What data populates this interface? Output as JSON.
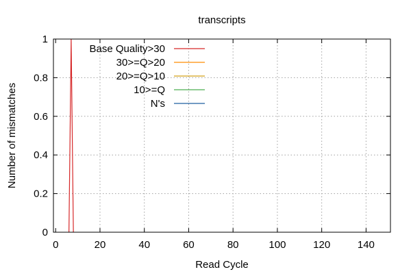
{
  "chart_data": {
    "type": "line",
    "title": "transcripts",
    "xlabel": "Read Cycle",
    "ylabel": "Number of mismatches",
    "xlim": [
      -1,
      151
    ],
    "ylim": [
      0,
      1
    ],
    "xticks": [
      0,
      20,
      40,
      60,
      80,
      100,
      120,
      140
    ],
    "yticks": [
      0,
      0.2,
      0.4,
      0.6,
      0.8,
      1
    ],
    "ytick_labels": [
      "0",
      "0.2",
      "0.4",
      "0.6",
      "0.8",
      "1"
    ],
    "grid": true,
    "legend_position": "top-left",
    "series": [
      {
        "name": "Base Quality>30",
        "color": "#d62728",
        "x": [
          6,
          7,
          8
        ],
        "y": [
          0,
          1,
          0
        ]
      },
      {
        "name": "30>=Q>20",
        "color": "#ff8c00",
        "x": [],
        "y": []
      },
      {
        "name": "20>=Q>10",
        "color": "#d4a017",
        "x": [],
        "y": []
      },
      {
        "name": "10>=Q",
        "color": "#4caf50",
        "x": [],
        "y": []
      },
      {
        "name": "N's",
        "color": "#1f5fa0",
        "x": [],
        "y": []
      }
    ]
  }
}
